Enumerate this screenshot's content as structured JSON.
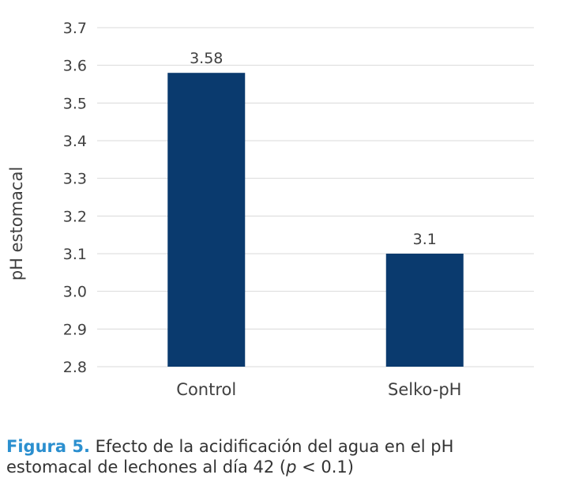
{
  "chart_data": {
    "type": "bar",
    "categories": [
      "Control",
      "Selko-pH"
    ],
    "values": [
      3.58,
      3.1
    ],
    "data_labels": [
      "3.58",
      "3.1"
    ],
    "ylabel": "pH estomacal",
    "ylim": [
      2.8,
      3.7
    ],
    "yticks": [
      "2.8",
      "2.9",
      "3.0",
      "3.1",
      "3.2",
      "3.3",
      "3.4",
      "3.5",
      "3.6",
      "3.7"
    ],
    "grid": true,
    "bar_color": "#0a3a6e"
  },
  "caption": {
    "label": "Figura 5.",
    "text_line1": " Efecto de la acidificación del agua en el pH",
    "text_line2_pre": "estomacal de lechones al día 42 (",
    "p_symbol": "p",
    "text_line2_post": " < 0.1)"
  }
}
